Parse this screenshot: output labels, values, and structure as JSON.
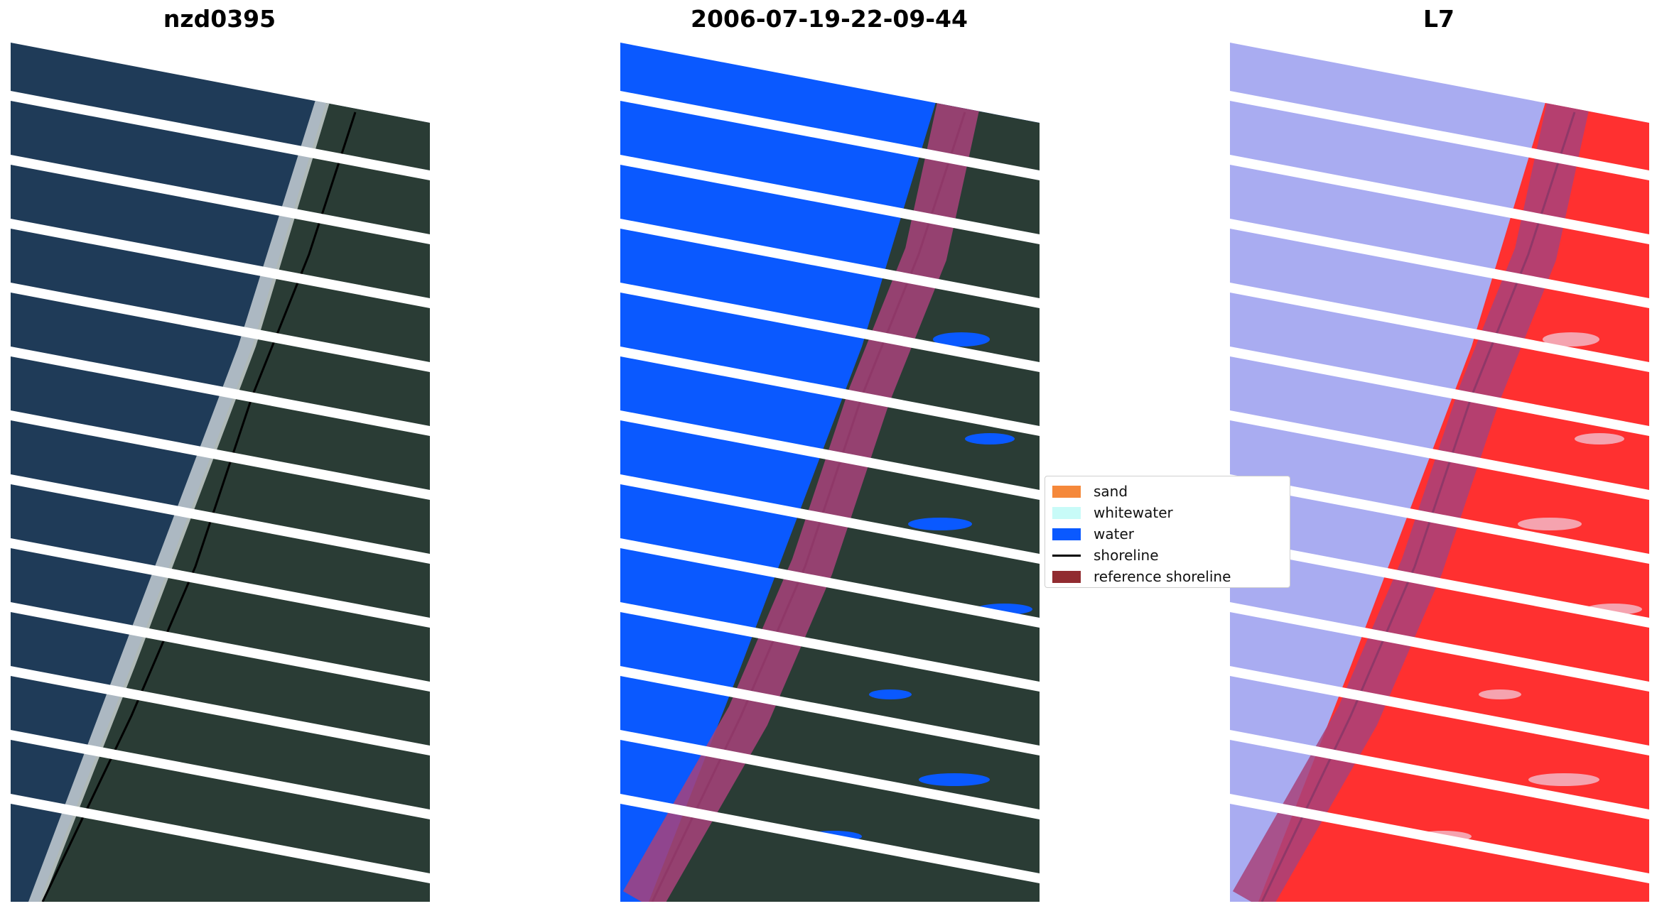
{
  "panels": [
    {
      "title": "nzd0395"
    },
    {
      "title": "2006-07-19-22-09-44"
    },
    {
      "title": "L7"
    }
  ],
  "legend": {
    "items": [
      {
        "label": "sand",
        "color": "#f5883a",
        "kind": "patch"
      },
      {
        "label": "whitewater",
        "color": "#c8fbf8",
        "kind": "patch"
      },
      {
        "label": "water",
        "color": "#0a59ff",
        "kind": "patch"
      },
      {
        "label": "shoreline",
        "color": "#000000",
        "kind": "line"
      },
      {
        "label": "reference shoreline",
        "color": "#912b30",
        "kind": "patch"
      }
    ]
  },
  "colors": {
    "sea": "#1f3b58",
    "land": "#2a3c35",
    "water_class": "#0a59ff",
    "index_water": "#a9acf1",
    "index_land": "#ff3030",
    "reference_band": "#a8427a",
    "shoreline": "#000000"
  }
}
